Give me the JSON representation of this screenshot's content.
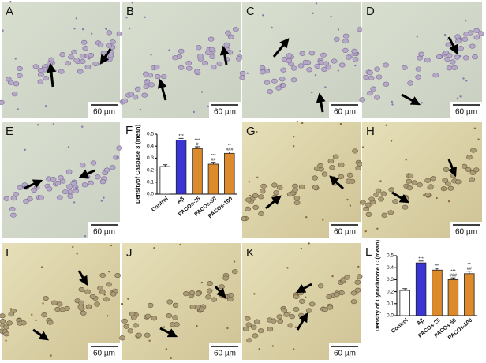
{
  "panels": [
    {
      "label": "A",
      "scale_bar": "60 µm"
    },
    {
      "label": "B",
      "scale_bar": "60 µm"
    },
    {
      "label": "C",
      "scale_bar": "60 µm"
    },
    {
      "label": "D",
      "scale_bar": "60 µm"
    },
    {
      "label": "E",
      "scale_bar": "60 µm"
    },
    {
      "label": "G",
      "scale_bar": "60 µm"
    },
    {
      "label": "H",
      "scale_bar": "60 µm"
    },
    {
      "label": "I",
      "scale_bar": "60 µm"
    },
    {
      "label": "J",
      "scale_bar": "60 µm"
    },
    {
      "label": "K",
      "scale_bar": "60 µm"
    }
  ],
  "chart_data": [
    {
      "type": "bar",
      "panel_label": "F",
      "ylabel": "Densityof Caspase 3 (mean)",
      "categories": [
        "Control",
        "Aβ",
        "PACOs-25",
        "PACOs-50",
        "PACOs-100"
      ],
      "values": [
        0.23,
        0.45,
        0.38,
        0.25,
        0.34
      ],
      "errors": [
        0.015,
        0.015,
        0.015,
        0.015,
        0.012
      ],
      "colors": [
        "#ffffff",
        "#3b35d8",
        "#dc8a2c",
        "#dc8a2c",
        "#dc8a2c"
      ],
      "annotations": [
        null,
        [
          "***"
        ],
        [
          "***",
          "#"
        ],
        [
          "***",
          "##"
        ],
        [
          "**",
          "###"
        ]
      ],
      "ylim": [
        0,
        0.5
      ],
      "yticks": [
        {
          "value": 0,
          "label": "0.0"
        },
        0.1,
        0.2,
        0.3,
        0.4,
        0.5
      ]
    },
    {
      "type": "bar",
      "panel_label": "L",
      "ylabel": "Density of Cytochrome C (mean)",
      "categories": [
        "Control",
        "Aβ",
        "PACOs-25",
        "PACOs-50",
        "PACOs-100"
      ],
      "values": [
        0.21,
        0.44,
        0.38,
        0.3,
        0.35
      ],
      "errors": [
        0.015,
        0.015,
        0.015,
        0.015,
        0.02
      ],
      "colors": [
        "#ffffff",
        "#3b35d8",
        "#dc8a2c",
        "#dc8a2c",
        "#dc8a2c"
      ],
      "annotations": [
        null,
        [
          "***"
        ],
        [
          "***"
        ],
        [
          "***",
          "###"
        ],
        [
          "**",
          "##"
        ]
      ],
      "ylim": [
        0,
        0.5
      ],
      "yticks": [
        {
          "value": 0,
          "label": "0.0"
        },
        0.1,
        0.2,
        0.3,
        0.4,
        0.5
      ]
    }
  ]
}
